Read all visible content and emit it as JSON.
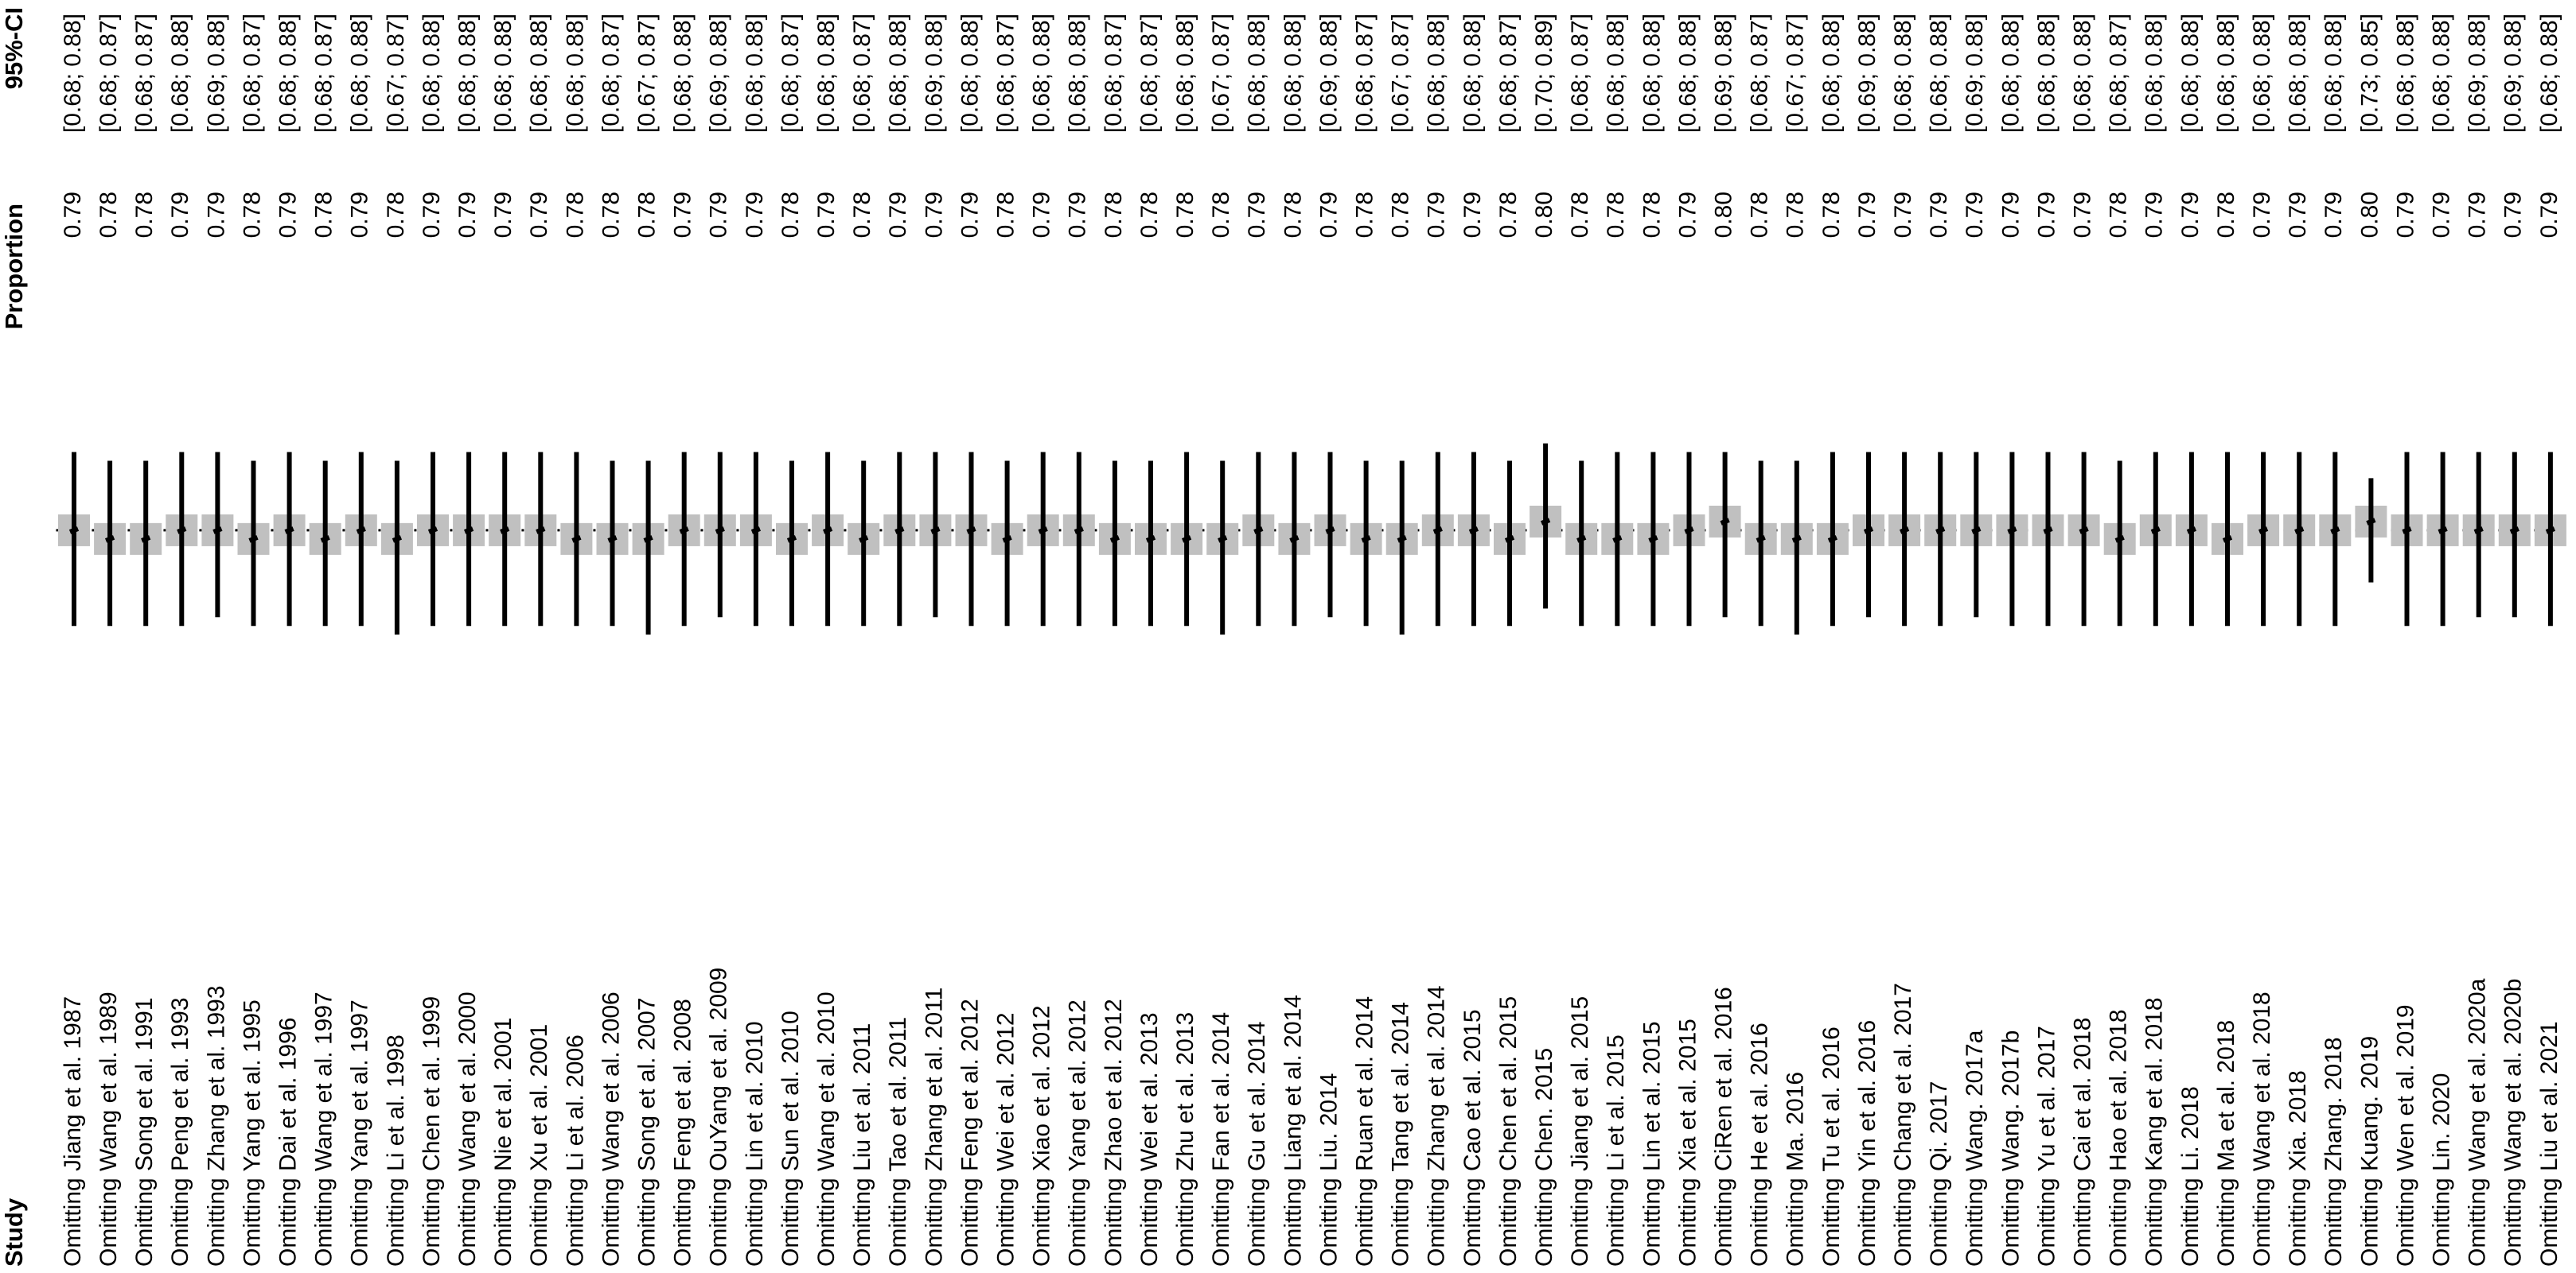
{
  "chart_data": {
    "type": "forest",
    "columns": {
      "study": "Study",
      "proportion": "Proportion",
      "ci": "95%-CI"
    },
    "categories": [
      "Omitting Jiang et al. 1987",
      "Omitting Wang et al. 1989",
      "Omitting Song et al. 1991",
      "Omitting Peng et al. 1993",
      "Omitting Zhang et al. 1993",
      "Omitting Yang et al. 1995",
      "Omitting Dai et al. 1996",
      "Omitting Wang et al. 1997",
      "Omitting Yang et al. 1997",
      "Omitting Li et al. 1998",
      "Omitting Chen et al. 1999",
      "Omitting Wang et al. 2000",
      "Omitting Nie et al. 2001",
      "Omitting Xu et al. 2001",
      "Omitting Li et al. 2006",
      "Omitting Wang et al. 2006",
      "Omitting Song et al. 2007",
      "Omitting Feng et al. 2008",
      "Omitting OuYang et al. 2009",
      "Omitting Lin et al. 2010",
      "Omitting Sun et al. 2010",
      "Omitting Wang et al. 2010",
      "Omitting Liu et al. 2011",
      "Omitting Tao et al. 2011",
      "Omitting Zhang et al. 2011",
      "Omitting Feng et al. 2012",
      "Omitting Wei et al. 2012",
      "Omitting Xiao et al. 2012",
      "Omitting Yang et al. 2012",
      "Omitting Zhao et al. 2012",
      "Omitting Wei et al. 2013",
      "Omitting Zhu et al. 2013",
      "Omitting Fan et al. 2014",
      "Omitting Gu et al. 2014",
      "Omitting Liang et al. 2014",
      "Omitting Liu. 2014",
      "Omitting Ruan et al. 2014",
      "Omitting Tang et al. 2014",
      "Omitting Zhang et al. 2014",
      "Omitting Cao et al. 2015",
      "Omitting Chen et al. 2015",
      "Omitting Chen. 2015",
      "Omitting Jiang et al. 2015",
      "Omitting Li et al. 2015",
      "Omitting Lin et al. 2015",
      "Omitting Xia et al. 2015",
      "Omitting CiRen et al. 2016",
      "Omitting He et al. 2016",
      "Omitting Ma. 2016",
      "Omitting Tu et al. 2016",
      "Omitting Yin et al. 2016",
      "Omitting Chang et al. 2017",
      "Omitting Qi. 2017",
      "Omitting Wang. 2017a",
      "Omitting Wang. 2017b",
      "Omitting Yu et al. 2017",
      "Omitting Cai et al. 2018",
      "Omitting Hao et al. 2018",
      "Omitting Kang et al. 2018",
      "Omitting Li. 2018",
      "Omitting Ma et al. 2018",
      "Omitting Wang et al. 2018",
      "Omitting Xia. 2018",
      "Omitting Zhang. 2018",
      "Omitting Kuang. 2019",
      "Omitting Wen et al. 2019",
      "Omitting Lin. 2020",
      "Omitting Wang et al. 2020a",
      "Omitting Wang et al. 2020b",
      "Omitting Liu et al. 2021"
    ],
    "values": [
      0.79,
      0.78,
      0.78,
      0.79,
      0.79,
      0.78,
      0.79,
      0.78,
      0.79,
      0.78,
      0.79,
      0.79,
      0.79,
      0.79,
      0.78,
      0.78,
      0.78,
      0.79,
      0.79,
      0.79,
      0.78,
      0.79,
      0.78,
      0.79,
      0.79,
      0.79,
      0.78,
      0.79,
      0.79,
      0.78,
      0.78,
      0.78,
      0.78,
      0.79,
      0.78,
      0.79,
      0.78,
      0.78,
      0.79,
      0.79,
      0.78,
      0.8,
      0.78,
      0.78,
      0.78,
      0.79,
      0.8,
      0.78,
      0.78,
      0.78,
      0.79,
      0.79,
      0.79,
      0.79,
      0.79,
      0.79,
      0.79,
      0.78,
      0.79,
      0.79,
      0.78,
      0.79,
      0.79,
      0.79,
      0.8,
      0.79,
      0.79,
      0.79,
      0.79,
      0.79
    ],
    "value_labels": [
      "0.79",
      "0.78",
      "0.78",
      "0.79",
      "0.79",
      "0.78",
      "0.79",
      "0.78",
      "0.79",
      "0.78",
      "0.79",
      "0.79",
      "0.79",
      "0.79",
      "0.78",
      "0.78",
      "0.78",
      "0.79",
      "0.79",
      "0.79",
      "0.78",
      "0.79",
      "0.78",
      "0.79",
      "0.79",
      "0.79",
      "0.78",
      "0.79",
      "0.79",
      "0.78",
      "0.78",
      "0.78",
      "0.78",
      "0.79",
      "0.78",
      "0.79",
      "0.78",
      "0.78",
      "0.79",
      "0.79",
      "0.78",
      "0.80",
      "0.78",
      "0.78",
      "0.78",
      "0.79",
      "0.80",
      "0.78",
      "0.78",
      "0.78",
      "0.79",
      "0.79",
      "0.79",
      "0.79",
      "0.79",
      "0.79",
      "0.79",
      "0.78",
      "0.79",
      "0.79",
      "0.78",
      "0.79",
      "0.79",
      "0.79",
      "0.80",
      "0.79",
      "0.79",
      "0.79",
      "0.79",
      "0.79"
    ],
    "lower": [
      0.68,
      0.68,
      0.68,
      0.68,
      0.69,
      0.68,
      0.68,
      0.68,
      0.68,
      0.67,
      0.68,
      0.68,
      0.68,
      0.68,
      0.68,
      0.68,
      0.67,
      0.68,
      0.69,
      0.68,
      0.68,
      0.68,
      0.68,
      0.68,
      0.69,
      0.68,
      0.68,
      0.68,
      0.68,
      0.68,
      0.68,
      0.68,
      0.67,
      0.68,
      0.68,
      0.69,
      0.68,
      0.67,
      0.68,
      0.68,
      0.68,
      0.7,
      0.68,
      0.68,
      0.68,
      0.68,
      0.69,
      0.68,
      0.67,
      0.68,
      0.69,
      0.68,
      0.68,
      0.69,
      0.68,
      0.68,
      0.68,
      0.68,
      0.68,
      0.68,
      0.68,
      0.68,
      0.68,
      0.68,
      0.73,
      0.68,
      0.68,
      0.69,
      0.69,
      0.68
    ],
    "upper": [
      0.88,
      0.87,
      0.87,
      0.88,
      0.88,
      0.87,
      0.88,
      0.87,
      0.88,
      0.87,
      0.88,
      0.88,
      0.88,
      0.88,
      0.88,
      0.87,
      0.87,
      0.88,
      0.88,
      0.88,
      0.87,
      0.88,
      0.87,
      0.88,
      0.88,
      0.88,
      0.87,
      0.88,
      0.88,
      0.87,
      0.87,
      0.88,
      0.87,
      0.88,
      0.88,
      0.88,
      0.87,
      0.87,
      0.88,
      0.88,
      0.87,
      0.89,
      0.87,
      0.88,
      0.88,
      0.88,
      0.88,
      0.87,
      0.87,
      0.88,
      0.88,
      0.88,
      0.88,
      0.88,
      0.88,
      0.88,
      0.88,
      0.87,
      0.88,
      0.88,
      0.88,
      0.88,
      0.88,
      0.88,
      0.85,
      0.88,
      0.88,
      0.88,
      0.88,
      0.88
    ],
    "ci_labels": [
      "[0.68; 0.88]",
      "[0.68; 0.87]",
      "[0.68; 0.87]",
      "[0.68; 0.88]",
      "[0.69; 0.88]",
      "[0.68; 0.87]",
      "[0.68; 0.88]",
      "[0.68; 0.87]",
      "[0.68; 0.88]",
      "[0.67; 0.87]",
      "[0.68; 0.88]",
      "[0.68; 0.88]",
      "[0.68; 0.88]",
      "[0.68; 0.88]",
      "[0.68; 0.88]",
      "[0.68; 0.87]",
      "[0.67; 0.87]",
      "[0.68; 0.88]",
      "[0.69; 0.88]",
      "[0.68; 0.88]",
      "[0.68; 0.87]",
      "[0.68; 0.88]",
      "[0.68; 0.87]",
      "[0.68; 0.88]",
      "[0.69; 0.88]",
      "[0.68; 0.88]",
      "[0.68; 0.87]",
      "[0.68; 0.88]",
      "[0.68; 0.88]",
      "[0.68; 0.87]",
      "[0.68; 0.87]",
      "[0.68; 0.88]",
      "[0.67; 0.87]",
      "[0.68; 0.88]",
      "[0.68; 0.88]",
      "[0.69; 0.88]",
      "[0.68; 0.87]",
      "[0.67; 0.87]",
      "[0.68; 0.88]",
      "[0.68; 0.88]",
      "[0.68; 0.87]",
      "[0.70; 0.89]",
      "[0.68; 0.87]",
      "[0.68; 0.88]",
      "[0.68; 0.88]",
      "[0.68; 0.88]",
      "[0.69; 0.88]",
      "[0.68; 0.87]",
      "[0.67; 0.87]",
      "[0.68; 0.88]",
      "[0.69; 0.88]",
      "[0.68; 0.88]",
      "[0.68; 0.88]",
      "[0.69; 0.88]",
      "[0.68; 0.88]",
      "[0.68; 0.88]",
      "[0.68; 0.88]",
      "[0.68; 0.87]",
      "[0.68; 0.88]",
      "[0.68; 0.88]",
      "[0.68; 0.88]",
      "[0.68; 0.88]",
      "[0.68; 0.88]",
      "[0.68; 0.88]",
      "[0.73; 0.85]",
      "[0.68; 0.88]",
      "[0.68; 0.88]",
      "[0.69; 0.88]",
      "[0.69; 0.88]",
      "[0.68; 0.88]"
    ],
    "reference_line": 0.79,
    "xlim": [
      0.5,
      1.1
    ],
    "color": "#c0c0c0"
  }
}
